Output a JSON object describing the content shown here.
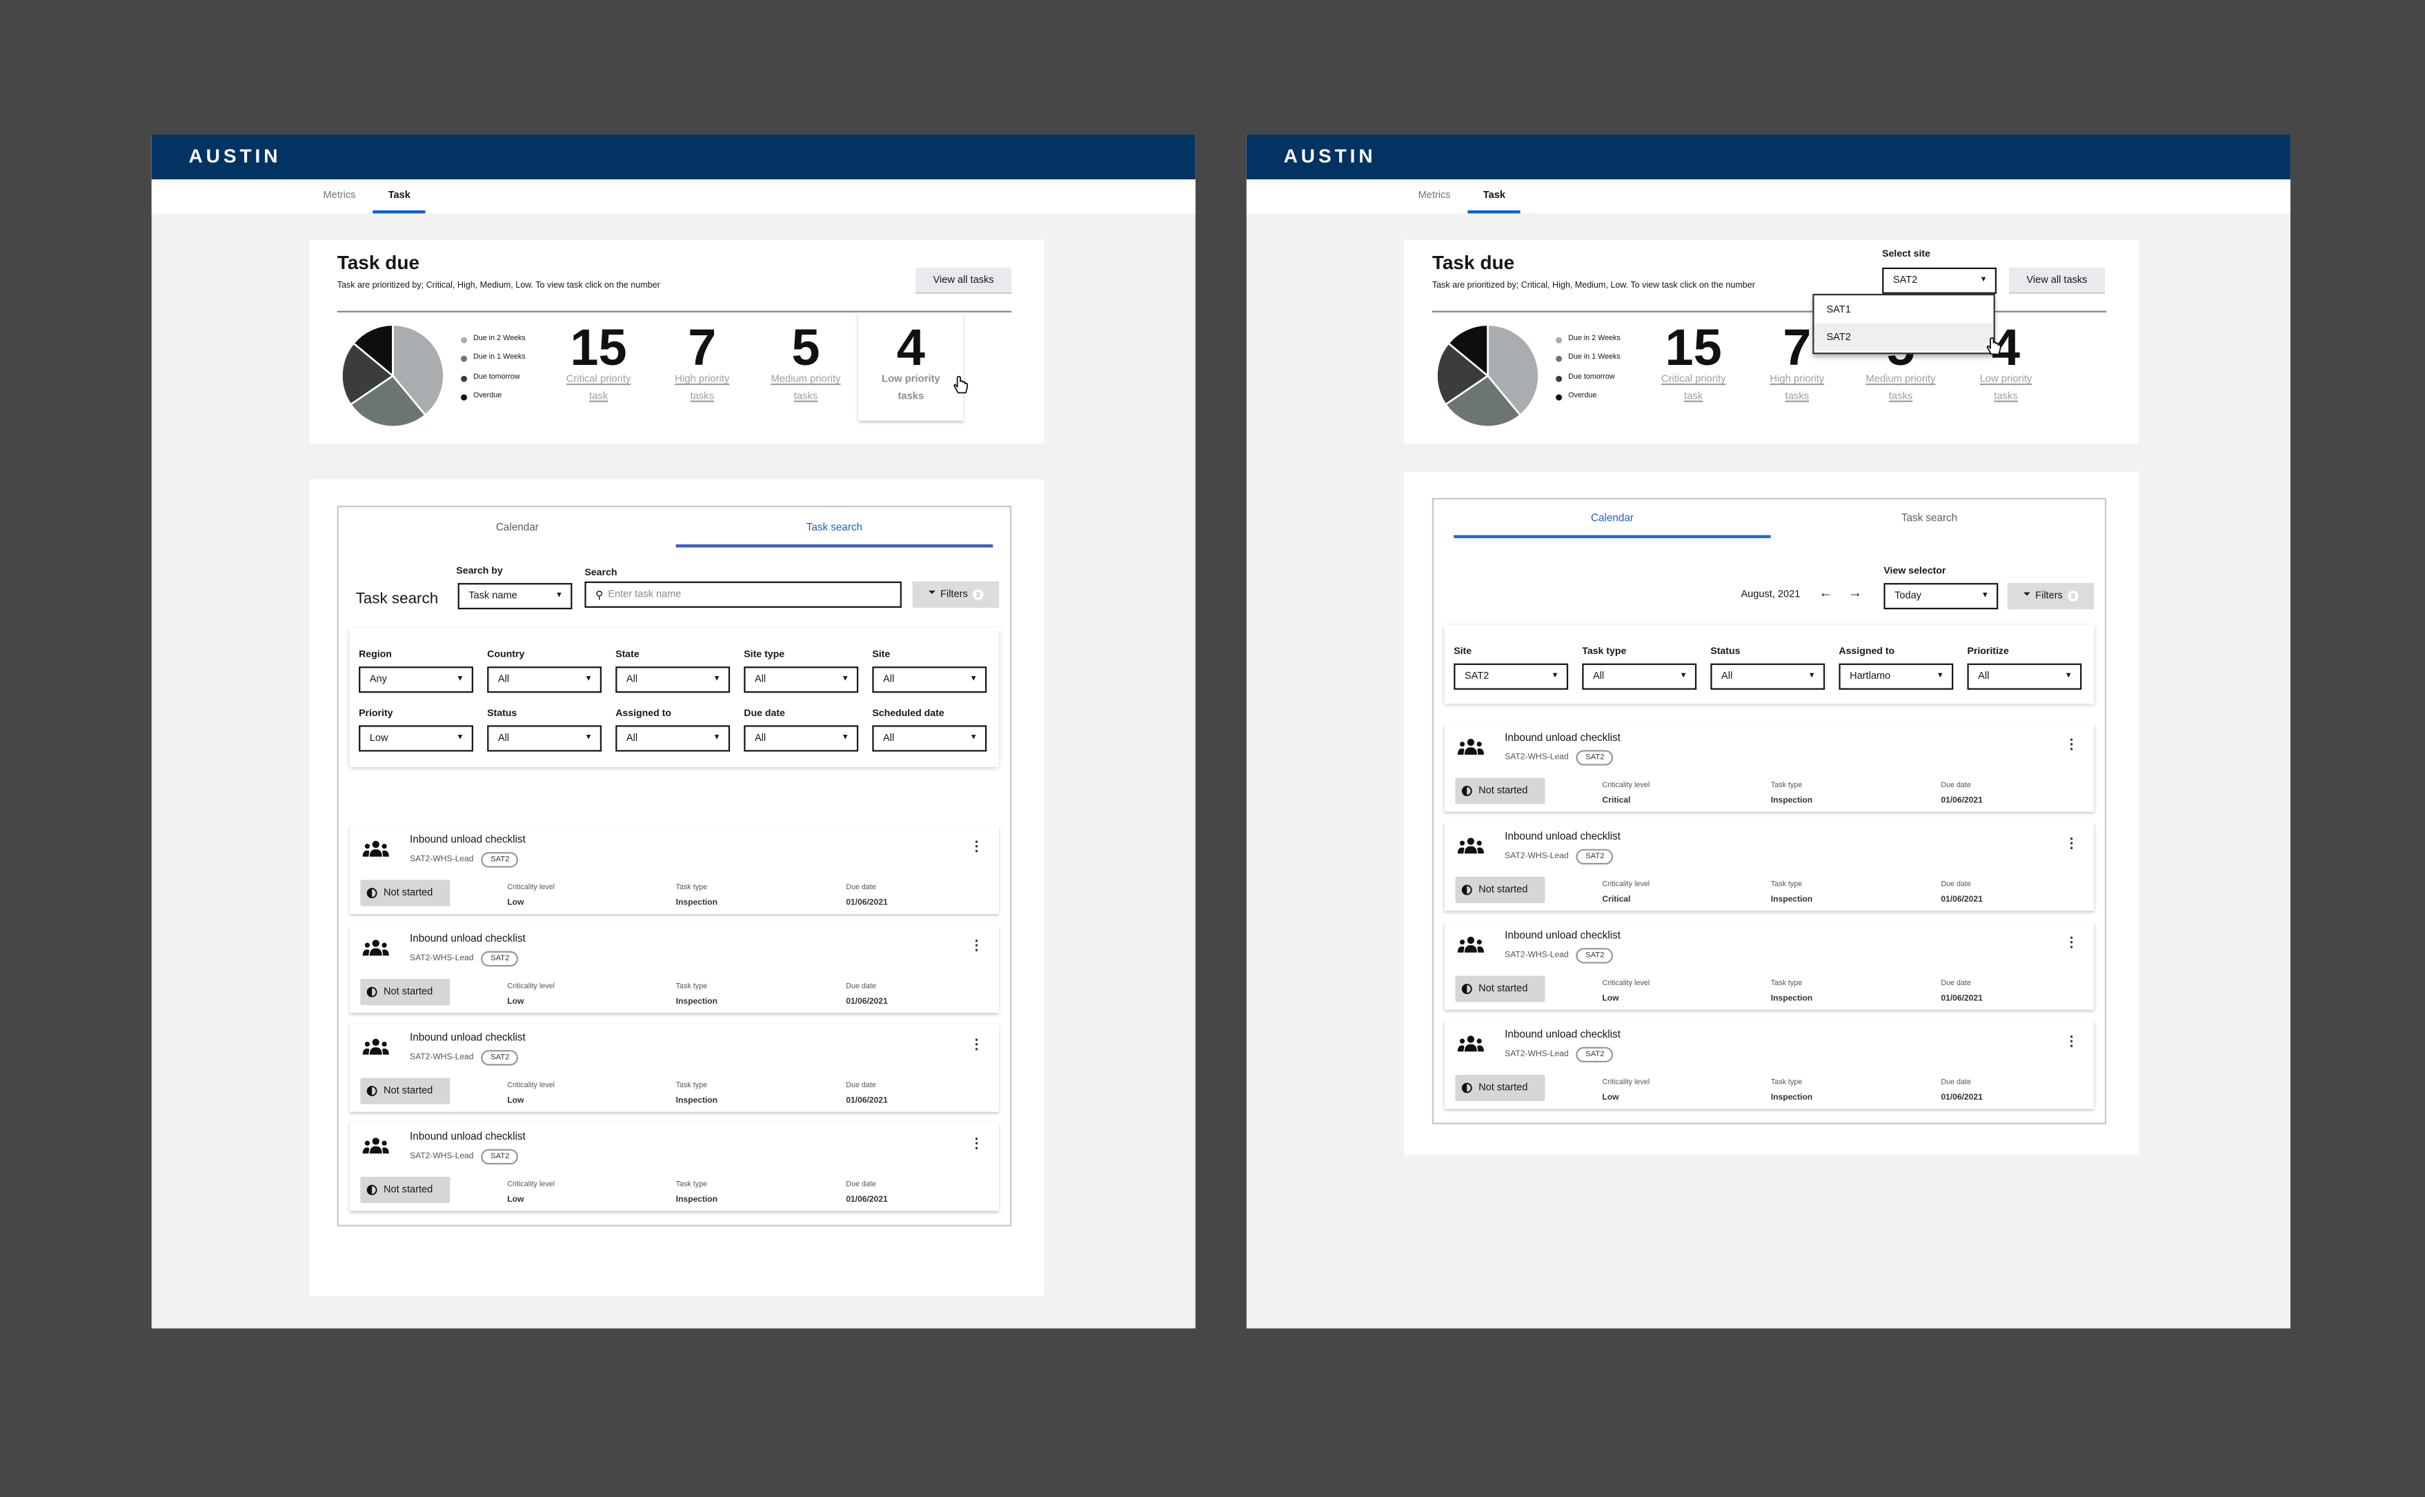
{
  "colors": {
    "header": "#033363",
    "accent": "#1a5fc9",
    "pie": [
      "#a9adb0",
      "#6b7673",
      "#3b3d3c",
      "#0d0f0f"
    ]
  },
  "screens": [
    {
      "brand": "AUSTIN",
      "nav": [
        "Metrics",
        "Task"
      ],
      "task_due": {
        "title": "Task due",
        "subtitle": "Task are prioritized by; Critical, High, Medium, Low. To view task click on the number",
        "view_all": "View all tasks",
        "legend": [
          "Due in 2 Weeks",
          "Due in 1 Weeks",
          "Due tomorrow",
          "Overdue"
        ],
        "pie_fractions": [
          0.39,
          0.265,
          0.205,
          0.14
        ],
        "counts": [
          {
            "value": "15",
            "label1": "Critical priority",
            "label2": "task"
          },
          {
            "value": "7",
            "label1": "High priority",
            "label2": "tasks"
          },
          {
            "value": "5",
            "label1": "Medium priority",
            "label2": "tasks"
          },
          {
            "value": "4",
            "label1": "Low priority",
            "label2": "tasks"
          }
        ]
      },
      "tabs": [
        "Calendar",
        "Task search"
      ],
      "search": {
        "heading": "Task search",
        "search_by_label": "Search by",
        "search_by_value": "Task name",
        "search_label": "Search",
        "placeholder": "Enter task name",
        "filters": "Filters",
        "filters_count": "3"
      },
      "filters": [
        {
          "label": "Region",
          "value": "Any"
        },
        {
          "label": "Country",
          "value": "All"
        },
        {
          "label": "State",
          "value": "All"
        },
        {
          "label": "Site type",
          "value": "All"
        },
        {
          "label": "Site",
          "value": "All"
        },
        {
          "label": "Priority",
          "value": "Low"
        },
        {
          "label": "Status",
          "value": "All"
        },
        {
          "label": "Assigned to",
          "value": "All"
        },
        {
          "label": "Due date",
          "value": "All"
        },
        {
          "label": "Scheduled date",
          "value": "All"
        }
      ],
      "task_fields": [
        "Criticality level",
        "Task type",
        "Due date"
      ],
      "tasks": [
        {
          "name": "Inbound unload checklist",
          "owner": "SAT2-WHS-Lead",
          "site": "SAT2",
          "status": "Not started",
          "criticality": "Low",
          "type": "Inspection",
          "due": "01/06/2021"
        },
        {
          "name": "Inbound unload checklist",
          "owner": "SAT2-WHS-Lead",
          "site": "SAT2",
          "status": "Not started",
          "criticality": "Low",
          "type": "Inspection",
          "due": "01/06/2021"
        },
        {
          "name": "Inbound unload checklist",
          "owner": "SAT2-WHS-Lead",
          "site": "SAT2",
          "status": "Not started",
          "criticality": "Low",
          "type": "Inspection",
          "due": "01/06/2021"
        },
        {
          "name": "Inbound unload checklist",
          "owner": "SAT2-WHS-Lead",
          "site": "SAT2",
          "status": "Not started",
          "criticality": "Low",
          "type": "Inspection",
          "due": "01/06/2021"
        }
      ]
    },
    {
      "brand": "AUSTIN",
      "nav": [
        "Metrics",
        "Task"
      ],
      "task_due": {
        "title": "Task due",
        "subtitle": "Task are prioritized by; Critical, High, Medium, Low. To view task click on the number",
        "view_all": "View all tasks",
        "select_site_label": "Select site",
        "select_site_value": "SAT2",
        "site_options": [
          "SAT1",
          "SAT2"
        ],
        "legend": [
          "Due in 2 Weeks",
          "Due in 1 Weeks",
          "Due tomorrow",
          "Overdue"
        ],
        "pie_fractions": [
          0.39,
          0.265,
          0.205,
          0.14
        ],
        "counts": [
          {
            "value": "15",
            "label1": "Critical priority",
            "label2": "task"
          },
          {
            "value": "7",
            "label1": "High priority",
            "label2": "tasks"
          },
          {
            "value": "5",
            "label1": "Medium priority",
            "label2": "tasks"
          },
          {
            "value": "4",
            "label1": "Low priority",
            "label2": "tasks"
          }
        ]
      },
      "tabs": [
        "Calendar",
        "Task search"
      ],
      "calendar": {
        "month": "August, 2021",
        "view_label": "View selector",
        "view_value": "Today",
        "filters": "Filters",
        "filters_count": "3"
      },
      "filters": [
        {
          "label": "Site",
          "value": "SAT2"
        },
        {
          "label": "Task type",
          "value": "All"
        },
        {
          "label": "Status",
          "value": "All"
        },
        {
          "label": "Assigned to",
          "value": "Hartlamo"
        },
        {
          "label": "Prioritize",
          "value": "All"
        }
      ],
      "task_fields": [
        "Criticality level",
        "Task type",
        "Due date"
      ],
      "tasks": [
        {
          "name": "Inbound unload checklist",
          "owner": "SAT2-WHS-Lead",
          "site": "SAT2",
          "status": "Not started",
          "criticality": "Critical",
          "type": "Inspection",
          "due": "01/06/2021"
        },
        {
          "name": "Inbound unload checklist",
          "owner": "SAT2-WHS-Lead",
          "site": "SAT2",
          "status": "Not started",
          "criticality": "Critical",
          "type": "Inspection",
          "due": "01/06/2021"
        },
        {
          "name": "Inbound unload checklist",
          "owner": "SAT2-WHS-Lead",
          "site": "SAT2",
          "status": "Not started",
          "criticality": "Low",
          "type": "Inspection",
          "due": "01/06/2021"
        },
        {
          "name": "Inbound unload checklist",
          "owner": "SAT2-WHS-Lead",
          "site": "SAT2",
          "status": "Not started",
          "criticality": "Low",
          "type": "Inspection",
          "due": "01/06/2021"
        }
      ]
    }
  ]
}
